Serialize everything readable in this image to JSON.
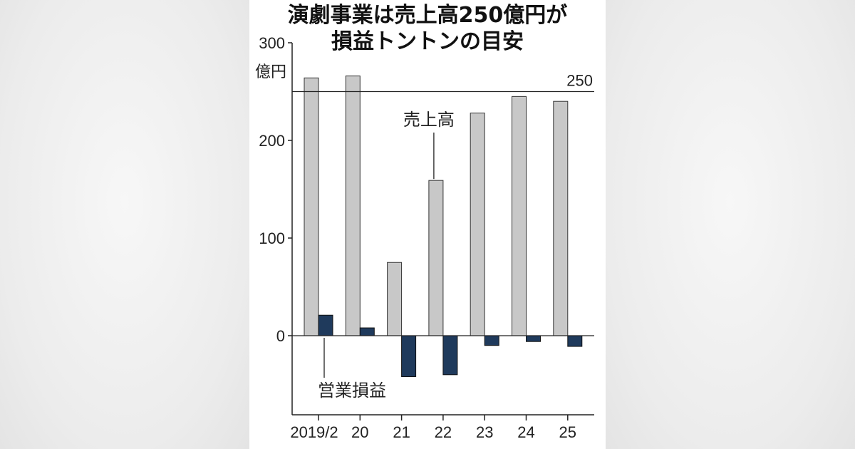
{
  "chart_data": {
    "type": "bar",
    "title_lines": [
      "演劇事業は売上高250億円が",
      "損益トントンの目安"
    ],
    "unit": "億円",
    "categories": [
      "2019/2",
      "20",
      "21",
      "22",
      "23",
      "24",
      "25"
    ],
    "series": [
      {
        "name": "売上高",
        "values": [
          264,
          266,
          75,
          159,
          228,
          245,
          240
        ],
        "color": "#c8c8c8"
      },
      {
        "name": "営業損益",
        "values": [
          21,
          8,
          -42,
          -40,
          -10,
          -6,
          -11
        ],
        "color": "#1f3a5c"
      }
    ],
    "y_ticks": [
      0,
      100,
      200,
      300
    ],
    "ylim": [
      -82,
      300
    ],
    "reference_line": {
      "value": 250,
      "label": "250"
    },
    "grid": false,
    "legend": "inline-labels"
  },
  "colors": {
    "panel": "#ffffff",
    "outside": "#eeeeee",
    "bar_outline": "#333333"
  }
}
